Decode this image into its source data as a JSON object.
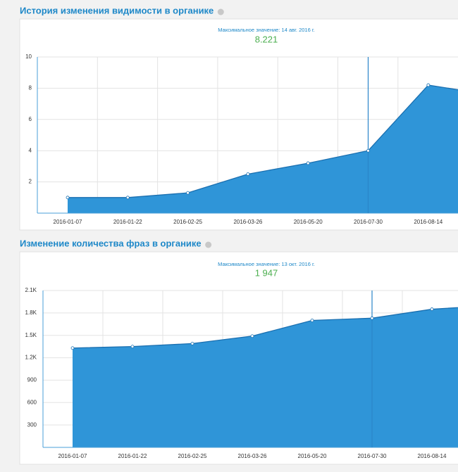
{
  "chart_data": [
    {
      "type": "area",
      "title": "История изменения видимости в органике",
      "subtitle": "Максимальное значение: 14 авг. 2016 г.",
      "annotation": "8.221",
      "categories": [
        "2016-01-07",
        "2016-01-22",
        "2016-02-25",
        "2016-03-26",
        "2016-05-20",
        "2016-07-30",
        "2016-08-14",
        null
      ],
      "values": [
        1.0,
        1.0,
        1.3,
        2.5,
        3.2,
        4.0,
        8.2,
        7.6
      ],
      "color": "#2f95d8",
      "ylim": [
        0,
        10
      ],
      "yticks": [
        2,
        4,
        6,
        8,
        10
      ],
      "grid": true
    },
    {
      "type": "area",
      "title": "Изменение количества фраз в органике",
      "subtitle": "Максимальное значение: 13 окт. 2016 г.",
      "annotation": "1 947",
      "categories": [
        "2016-01-07",
        "2016-01-22",
        "2016-02-25",
        "2016-03-26",
        "2016-05-20",
        "2016-07-30",
        "2016-08-14",
        null
      ],
      "values": [
        1330,
        1350,
        1390,
        1490,
        1700,
        1730,
        1850,
        1900
      ],
      "color": "#2f95d8",
      "ylim": [
        0,
        2100
      ],
      "yticks": [
        300,
        600,
        900,
        {
          "value": 1200,
          "label": "1.2K"
        },
        {
          "value": 1500,
          "label": "1.5K"
        },
        {
          "value": 1800,
          "label": "1.8K"
        },
        {
          "value": 2100,
          "label": "2.1K"
        }
      ],
      "grid": true
    }
  ]
}
